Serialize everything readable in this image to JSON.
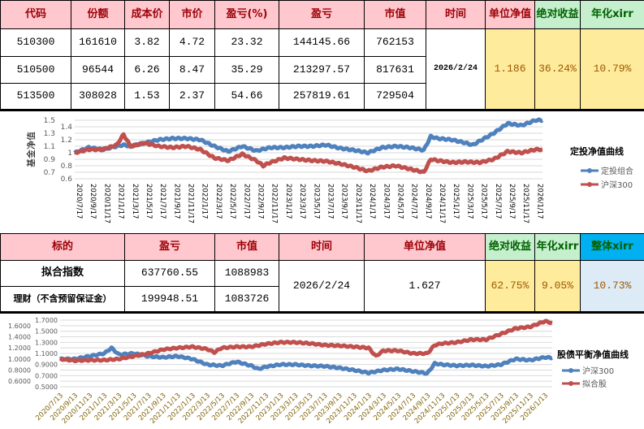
{
  "table1": {
    "headers": [
      "代码",
      "份额",
      "成本价",
      "市价",
      "盈亏(%)",
      "盈亏",
      "市值",
      "时间",
      "单位净值",
      "绝对收益",
      "年化xirr"
    ],
    "rows": [
      [
        "510300",
        "161610",
        "3.82",
        "4.72",
        "23.32",
        "144145.66",
        "762153"
      ],
      [
        "510500",
        "96544",
        "6.26",
        "8.47",
        "35.29",
        "213297.57",
        "817631"
      ],
      [
        "513500",
        "308028",
        "1.53",
        "2.37",
        "54.66",
        "257819.61",
        "729504"
      ]
    ],
    "date": "2026/2/24",
    "nav": "1.186",
    "abs_return": "36.24%",
    "xirr": "10.79%"
  },
  "table2": {
    "headers": [
      "标的",
      "盈亏",
      "市值",
      "时间",
      "单位净值",
      "绝对收益",
      "年化xirr",
      "整体xirr"
    ],
    "rows": [
      [
        "拟合指数",
        "637760.55",
        "1088983"
      ],
      [
        "理财（不含预留保证金）",
        "199948.51",
        "1083726"
      ]
    ],
    "date": "2026/2/24",
    "nav": "1.627",
    "abs_return": "62.75%",
    "xirr": "9.05%",
    "overall_xirr": "10.73%"
  },
  "chart_data": [
    {
      "type": "line",
      "title": "定投净值曲线",
      "ylabel": "基金净值",
      "ylim": [
        0.6,
        1.5
      ],
      "yticks": [
        0.6,
        0.7,
        0.8,
        0.9,
        1,
        1.1,
        1.2,
        1.3,
        1.4,
        1.5
      ],
      "grid": true,
      "legend": "right",
      "xticks": [
        "2020/7/17",
        "2020/9/17",
        "2020/11/17",
        "2021/1/17",
        "2021/3/17",
        "2021/5/17",
        "2021/7/17",
        "2021/9/17",
        "2021/11/17",
        "2022/1/17",
        "2022/3/17",
        "2022/5/17",
        "2022/7/17",
        "2022/9/17",
        "2022/11/17",
        "2023/1/17",
        "2023/3/17",
        "2023/5/17",
        "2023/7/17",
        "2023/9/17",
        "2023/11/17",
        "2024/1/17",
        "2024/3/17",
        "2024/5/17",
        "2024/7/17",
        "2024/9/17",
        "2024/11/17",
        "2025/1/17",
        "2025/3/17",
        "2025/5/17",
        "2025/7/17",
        "2025/9/17",
        "2025/11/17",
        "2026/1/17"
      ],
      "series": [
        {
          "name": "定投组合",
          "color": "#4f81bd",
          "points": [
            [
              "2020-07",
              1.0
            ],
            [
              "2020-09",
              1.08
            ],
            [
              "2020-11",
              1.05
            ],
            [
              "2021-01",
              1.1
            ],
            [
              "2021-02",
              1.12
            ],
            [
              "2021-03",
              1.1
            ],
            [
              "2021-05",
              1.15
            ],
            [
              "2021-07",
              1.2
            ],
            [
              "2021-09",
              1.22
            ],
            [
              "2021-11",
              1.22
            ],
            [
              "2022-01",
              1.2
            ],
            [
              "2022-03",
              1.1
            ],
            [
              "2022-05",
              1.02
            ],
            [
              "2022-07",
              1.1
            ],
            [
              "2022-09",
              1.03
            ],
            [
              "2022-11",
              1.08
            ],
            [
              "2023-01",
              1.08
            ],
            [
              "2023-03",
              1.1
            ],
            [
              "2023-05",
              1.1
            ],
            [
              "2023-07",
              1.12
            ],
            [
              "2023-09",
              1.07
            ],
            [
              "2023-11",
              1.04
            ],
            [
              "2024-01",
              1.0
            ],
            [
              "2024-03",
              1.08
            ],
            [
              "2024-05",
              1.1
            ],
            [
              "2024-07",
              1.08
            ],
            [
              "2024-09",
              1.04
            ],
            [
              "2024-10",
              1.25
            ],
            [
              "2024-11",
              1.22
            ],
            [
              "2025-01",
              1.2
            ],
            [
              "2025-03",
              1.15
            ],
            [
              "2025-04",
              1.12
            ],
            [
              "2025-05",
              1.18
            ],
            [
              "2025-07",
              1.3
            ],
            [
              "2025-09",
              1.45
            ],
            [
              "2025-11",
              1.42
            ],
            [
              "2026-01",
              1.5
            ],
            [
              "2026-02",
              1.5
            ]
          ]
        },
        {
          "name": "沪深300",
          "color": "#c0504d",
          "points": [
            [
              "2020-07",
              1.0
            ],
            [
              "2020-09",
              1.05
            ],
            [
              "2020-11",
              1.05
            ],
            [
              "2021-01",
              1.12
            ],
            [
              "2021-02",
              1.28
            ],
            [
              "2021-03",
              1.1
            ],
            [
              "2021-05",
              1.15
            ],
            [
              "2021-07",
              1.1
            ],
            [
              "2021-09",
              1.08
            ],
            [
              "2021-11",
              1.1
            ],
            [
              "2022-01",
              1.05
            ],
            [
              "2022-03",
              0.92
            ],
            [
              "2022-05",
              0.88
            ],
            [
              "2022-07",
              0.98
            ],
            [
              "2022-09",
              0.88
            ],
            [
              "2022-10",
              0.8
            ],
            [
              "2022-11",
              0.85
            ],
            [
              "2023-01",
              0.92
            ],
            [
              "2023-03",
              0.9
            ],
            [
              "2023-05",
              0.88
            ],
            [
              "2023-07",
              0.87
            ],
            [
              "2023-09",
              0.83
            ],
            [
              "2023-11",
              0.78
            ],
            [
              "2024-01",
              0.72
            ],
            [
              "2024-03",
              0.78
            ],
            [
              "2024-05",
              0.8
            ],
            [
              "2024-07",
              0.75
            ],
            [
              "2024-09",
              0.7
            ],
            [
              "2024-10",
              0.9
            ],
            [
              "2024-11",
              0.88
            ],
            [
              "2025-01",
              0.85
            ],
            [
              "2025-03",
              0.86
            ],
            [
              "2025-05",
              0.85
            ],
            [
              "2025-07",
              0.9
            ],
            [
              "2025-09",
              1.02
            ],
            [
              "2025-11",
              1.0
            ],
            [
              "2026-01",
              1.05
            ],
            [
              "2026-02",
              1.05
            ]
          ]
        }
      ]
    },
    {
      "type": "line",
      "title": "股债平衡净值曲线",
      "ylim": [
        0.5,
        1.7
      ],
      "yticks": [
        "0.5000",
        "0.6000",
        "0.7000",
        "0.8000",
        "0.9000",
        "1.0000",
        "1.1000",
        "1.2000",
        "1.3000",
        "1.4000",
        "1.5000",
        "1.6000",
        "1.7000"
      ],
      "grid": true,
      "legend": "right",
      "xticks": [
        "2020/7/13",
        "2020/9/13",
        "2020/11/13",
        "2021/1/13",
        "2021/3/13",
        "2021/5/13",
        "2021/7/13",
        "2021/9/13",
        "2021/11/13",
        "2022/1/13",
        "2022/3/13",
        "2022/5/13",
        "2022/7/13",
        "2022/9/13",
        "2022/11/13",
        "2023/1/13",
        "2023/3/13",
        "2023/5/13",
        "2023/7/13",
        "2023/9/13",
        "2023/11/13",
        "2024/1/13",
        "2024/3/13",
        "2024/5/13",
        "2024/7/13",
        "2024/9/13",
        "2024/11/13",
        "2025/1/13",
        "2025/3/13",
        "2025/5/13",
        "2025/7/13",
        "2025/9/13",
        "2025/11/13",
        "2026/1/13"
      ],
      "series": [
        {
          "name": "沪深300",
          "color": "#4f81bd",
          "points": [
            [
              "2020-07",
              1.0
            ],
            [
              "2020-09",
              1.0
            ],
            [
              "2020-11",
              1.05
            ],
            [
              "2021-01",
              1.1
            ],
            [
              "2021-02",
              1.2
            ],
            [
              "2021-03",
              1.08
            ],
            [
              "2021-05",
              1.1
            ],
            [
              "2021-07",
              1.05
            ],
            [
              "2021-09",
              1.03
            ],
            [
              "2021-11",
              1.05
            ],
            [
              "2022-01",
              1.0
            ],
            [
              "2022-03",
              0.9
            ],
            [
              "2022-05",
              0.88
            ],
            [
              "2022-07",
              0.95
            ],
            [
              "2022-09",
              0.88
            ],
            [
              "2022-10",
              0.82
            ],
            [
              "2022-11",
              0.86
            ],
            [
              "2023-01",
              0.9
            ],
            [
              "2023-03",
              0.9
            ],
            [
              "2023-05",
              0.88
            ],
            [
              "2023-07",
              0.87
            ],
            [
              "2023-09",
              0.84
            ],
            [
              "2023-11",
              0.8
            ],
            [
              "2024-01",
              0.75
            ],
            [
              "2024-03",
              0.8
            ],
            [
              "2024-05",
              0.82
            ],
            [
              "2024-07",
              0.78
            ],
            [
              "2024-09",
              0.74
            ],
            [
              "2024-10",
              0.92
            ],
            [
              "2024-11",
              0.9
            ],
            [
              "2025-01",
              0.88
            ],
            [
              "2025-03",
              0.89
            ],
            [
              "2025-05",
              0.87
            ],
            [
              "2025-07",
              0.9
            ],
            [
              "2025-09",
              1.0
            ],
            [
              "2025-11",
              0.98
            ],
            [
              "2026-01",
              1.03
            ],
            [
              "2026-02",
              1.02
            ]
          ]
        },
        {
          "name": "拟合股",
          "color": "#c0504d",
          "points": [
            [
              "2020-07",
              1.0
            ],
            [
              "2020-09",
              0.97
            ],
            [
              "2020-11",
              0.98
            ],
            [
              "2021-01",
              0.98
            ],
            [
              "2021-03",
              1.0
            ],
            [
              "2021-05",
              1.05
            ],
            [
              "2021-07",
              1.1
            ],
            [
              "2021-09",
              1.17
            ],
            [
              "2021-11",
              1.2
            ],
            [
              "2022-01",
              1.22
            ],
            [
              "2022-03",
              1.18
            ],
            [
              "2022-04",
              1.12
            ],
            [
              "2022-05",
              1.2
            ],
            [
              "2022-07",
              1.22
            ],
            [
              "2022-09",
              1.22
            ],
            [
              "2022-11",
              1.27
            ],
            [
              "2023-01",
              1.3
            ],
            [
              "2023-03",
              1.3
            ],
            [
              "2023-05",
              1.28
            ],
            [
              "2023-07",
              1.25
            ],
            [
              "2023-09",
              1.24
            ],
            [
              "2023-11",
              1.22
            ],
            [
              "2024-01",
              1.2
            ],
            [
              "2024-02",
              1.05
            ],
            [
              "2024-03",
              1.15
            ],
            [
              "2024-05",
              1.15
            ],
            [
              "2024-07",
              1.1
            ],
            [
              "2024-09",
              1.1
            ],
            [
              "2024-10",
              1.25
            ],
            [
              "2024-11",
              1.28
            ],
            [
              "2025-01",
              1.3
            ],
            [
              "2025-03",
              1.35
            ],
            [
              "2025-05",
              1.35
            ],
            [
              "2025-07",
              1.45
            ],
            [
              "2025-09",
              1.55
            ],
            [
              "2025-11",
              1.58
            ],
            [
              "2026-01",
              1.68
            ],
            [
              "2026-02",
              1.65
            ]
          ]
        }
      ]
    }
  ]
}
